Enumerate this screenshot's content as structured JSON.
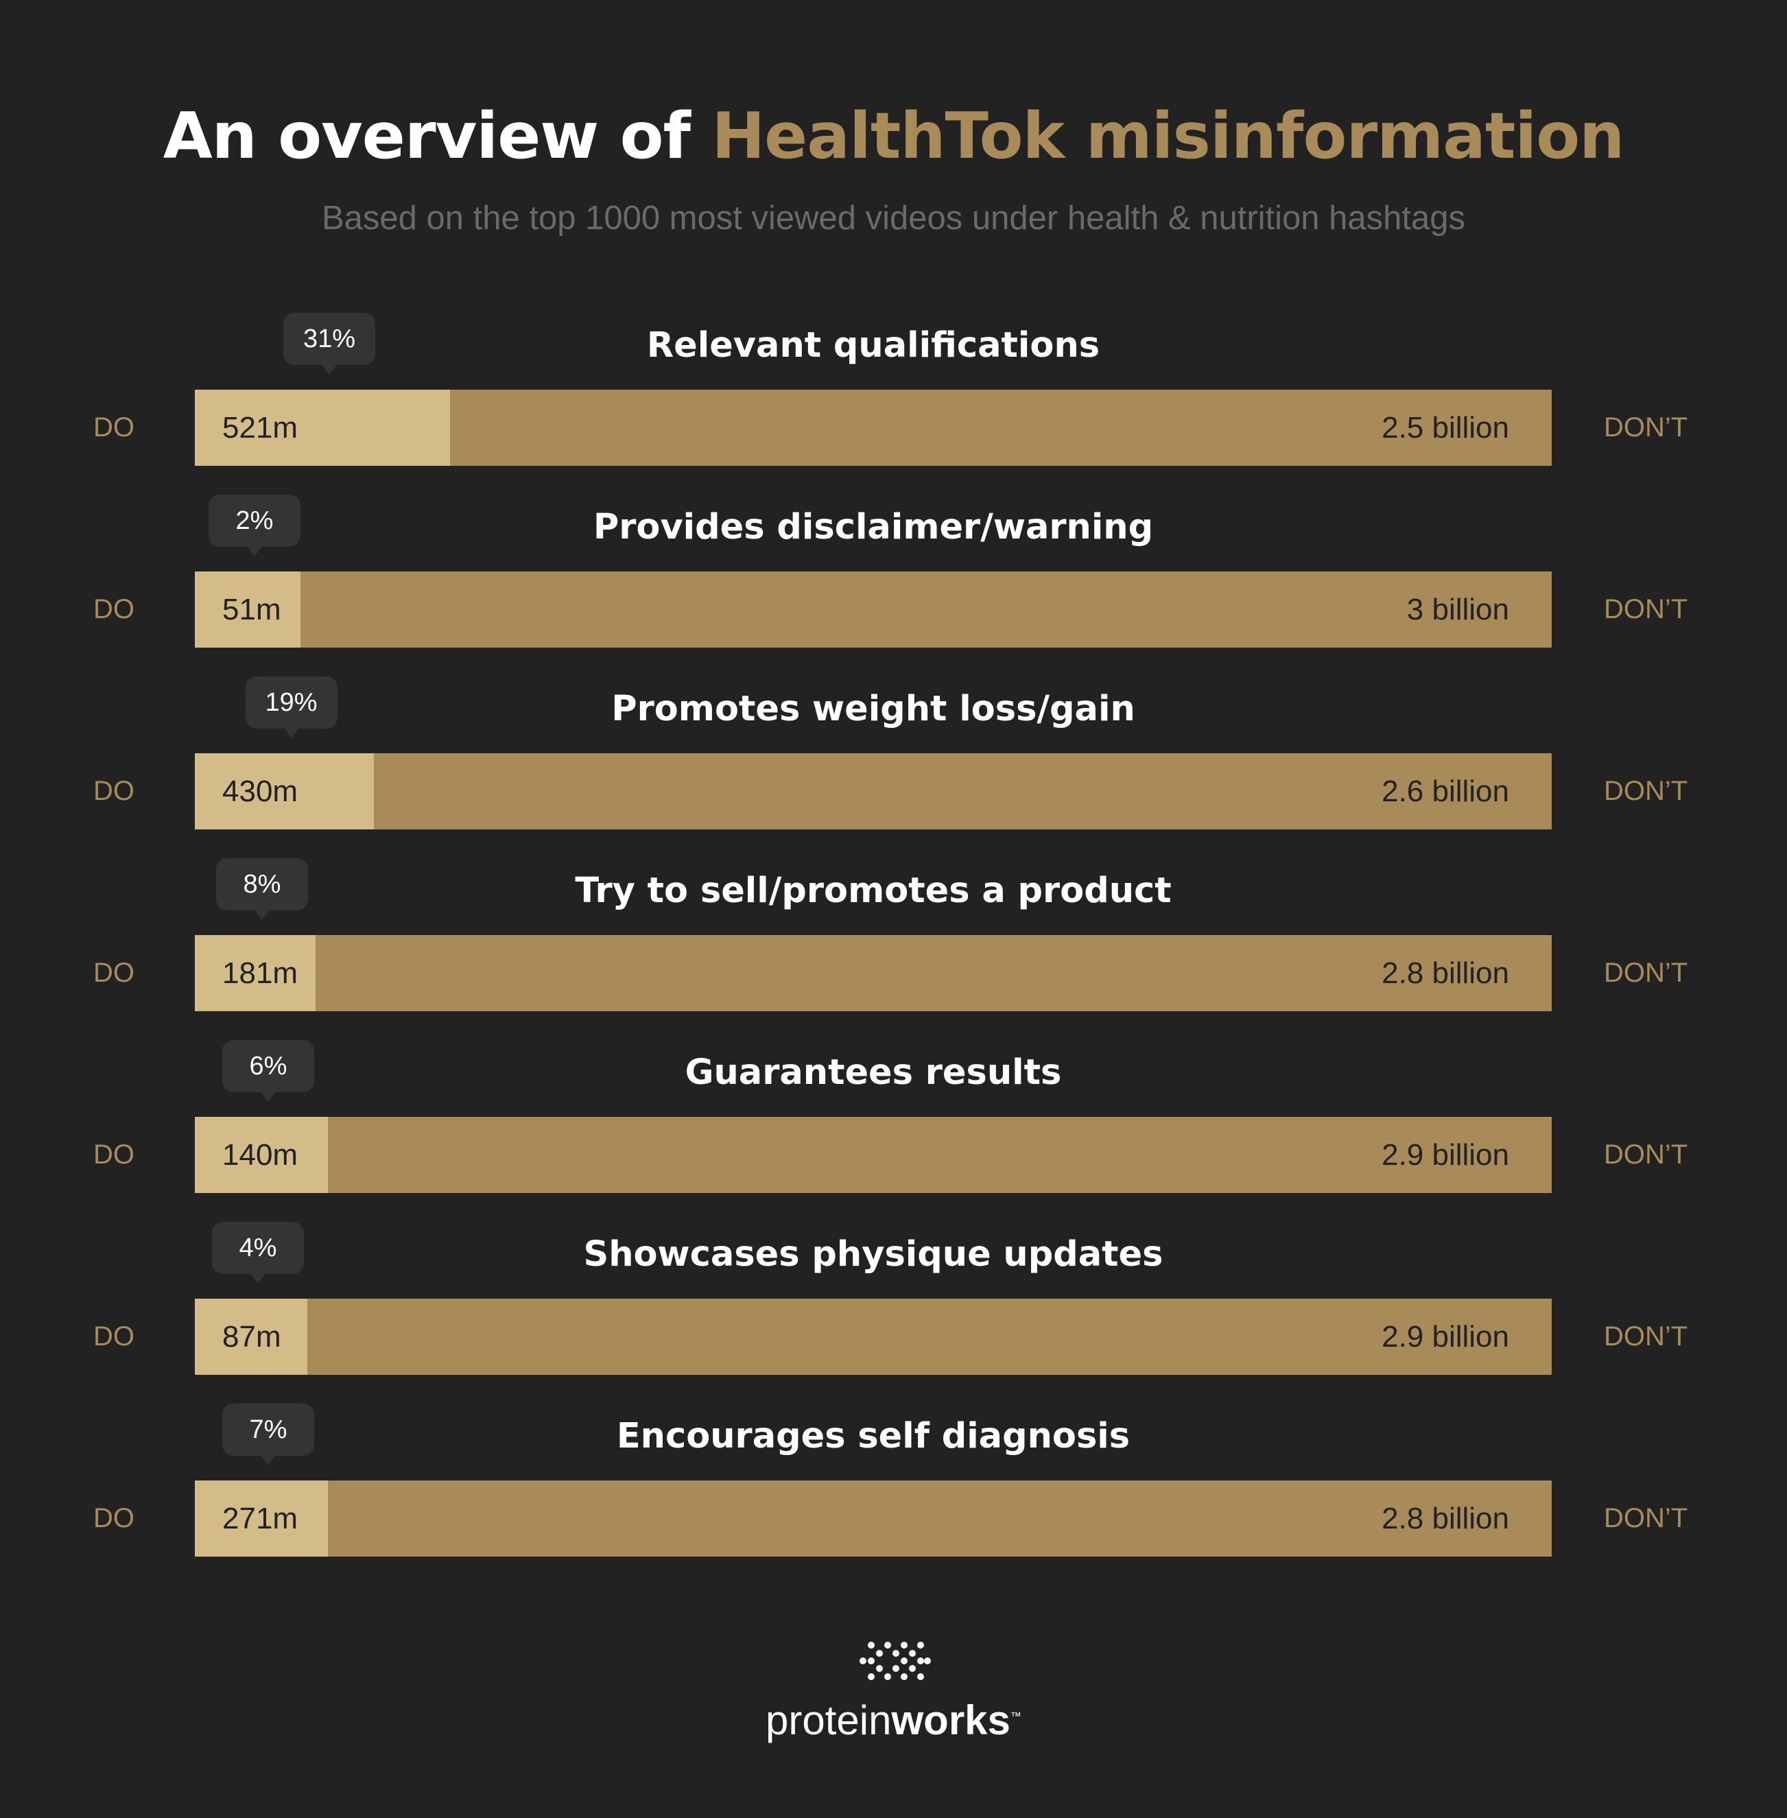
{
  "title": {
    "prefix": "An overview of",
    "highlight": "HealthTok misinformation"
  },
  "subtitle": "Based on the top 1000 most viewed videos under health & nutrition hashtags",
  "colors": {
    "background": "#222222",
    "do_bar": "#d4bc88",
    "dont_bar": "#a88b59",
    "accent": "#a88b59",
    "bubble": "#343434"
  },
  "side_labels": {
    "do": "DO",
    "dont": "DON’T"
  },
  "chart_data": {
    "type": "bar",
    "orientation": "horizontal-stacked-100",
    "categories": [
      "Relevant qualifications",
      "Provides disclaimer/warning",
      "Promotes weight loss/gain",
      "Try to sell/promotes a product",
      "Guarantees results",
      "Showcases physique updates",
      "Encourages self diagnosis"
    ],
    "percent_labels": [
      "31%",
      "2%",
      "19%",
      "8%",
      "6%",
      "4%",
      "7%"
    ],
    "do_labels": [
      "521m",
      "51m",
      "430m",
      "181m",
      "140m",
      "87m",
      "271m"
    ],
    "dont_labels": [
      "2.5 billion",
      "3 billion",
      "2.6 billion",
      "2.8 billion",
      "2.9 billion",
      "2.9 billion",
      "2.8 billion"
    ],
    "series": [
      {
        "name": "DO",
        "values": [
          521,
          51,
          430,
          181,
          140,
          87,
          271
        ]
      },
      {
        "name": "DON’T",
        "values": [
          2500,
          3000,
          2600,
          2800,
          2900,
          2900,
          2800
        ]
      }
    ],
    "do_share": [
      0.188,
      0.078,
      0.132,
      0.089,
      0.098,
      0.083,
      0.098
    ],
    "title": "",
    "xlabel": "",
    "ylabel": "",
    "grid": false,
    "legend": "none"
  },
  "logo": {
    "word1": "protein",
    "word2": "works",
    "tm": "™",
    "icon": "dots-logo-icon"
  }
}
